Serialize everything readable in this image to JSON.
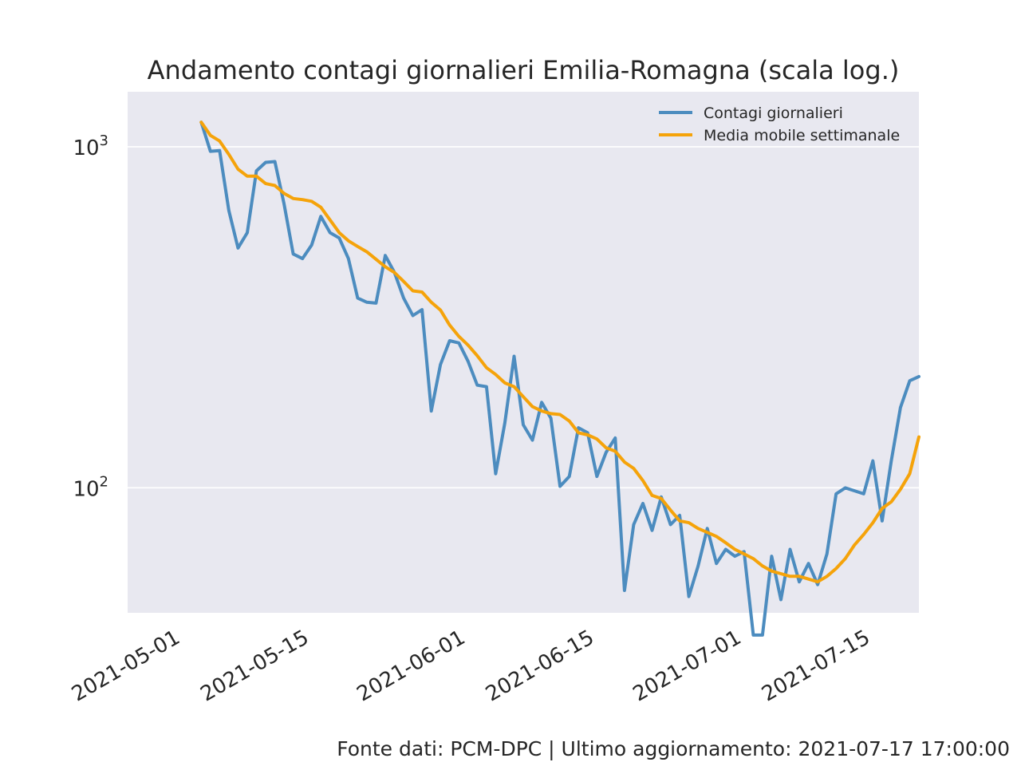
{
  "chart_data": {
    "type": "line",
    "title": "Andamento contagi giornalieri Emilia-Romagna (scala log.)",
    "xlabel": "",
    "ylabel": "",
    "y_scale": "log",
    "ylim": [
      43,
      1450
    ],
    "xlim": [
      "2021-04-27",
      "2021-07-22"
    ],
    "grid": true,
    "legend_position": "top-right",
    "x_ticks": [
      "2021-05-01",
      "2021-05-15",
      "2021-06-01",
      "2021-06-15",
      "2021-07-01",
      "2021-07-15"
    ],
    "y_ticks": [
      {
        "value": 100,
        "base": "10",
        "exp": "2"
      },
      {
        "value": 1000,
        "base": "10",
        "exp": "3"
      }
    ],
    "x_start": "2021-05-05",
    "x_step_days": 1,
    "series": [
      {
        "name": "Contagi giornalieri",
        "color": "#4c8cbf",
        "values": [
          1180,
          970,
          975,
          650,
          505,
          560,
          850,
          900,
          905,
          680,
          485,
          470,
          515,
          625,
          560,
          540,
          470,
          360,
          350,
          348,
          480,
          428,
          360,
          320,
          333,
          168,
          230,
          270,
          266,
          235,
          200,
          198,
          110,
          155,
          243,
          153,
          138,
          178,
          160,
          101,
          108,
          150,
          145,
          108,
          127,
          140,
          50,
          78,
          90,
          75,
          94,
          78,
          83,
          48,
          59,
          76,
          60,
          66,
          63,
          65,
          37,
          37,
          63,
          47,
          66,
          53,
          60,
          52,
          64,
          96,
          100,
          98,
          96,
          120,
          80,
          120,
          172,
          206,
          212
        ]
      },
      {
        "name": "Media mobile settimanale",
        "color": "#f5a30a",
        "values": [
          1180,
          1080,
          1040,
          950,
          860,
          820,
          820,
          780,
          770,
          730,
          705,
          700,
          692,
          665,
          610,
          560,
          530,
          510,
          492,
          468,
          445,
          428,
          403,
          378,
          375,
          350,
          332,
          300,
          278,
          262,
          244,
          225,
          215,
          203,
          198,
          185,
          173,
          168,
          165,
          164,
          157,
          145,
          143,
          139,
          131,
          128,
          119,
          114,
          105,
          95,
          93,
          86,
          80,
          79,
          76,
          74,
          72,
          69,
          66,
          64,
          62,
          59,
          57,
          56,
          55,
          55,
          54,
          53,
          55,
          58,
          62,
          68,
          73,
          79,
          87,
          91,
          99,
          110,
          141
        ]
      }
    ],
    "footer": "Fonte dati: PCM-DPC | Ultimo aggiornamento: 2021-07-17 17:00:00"
  }
}
